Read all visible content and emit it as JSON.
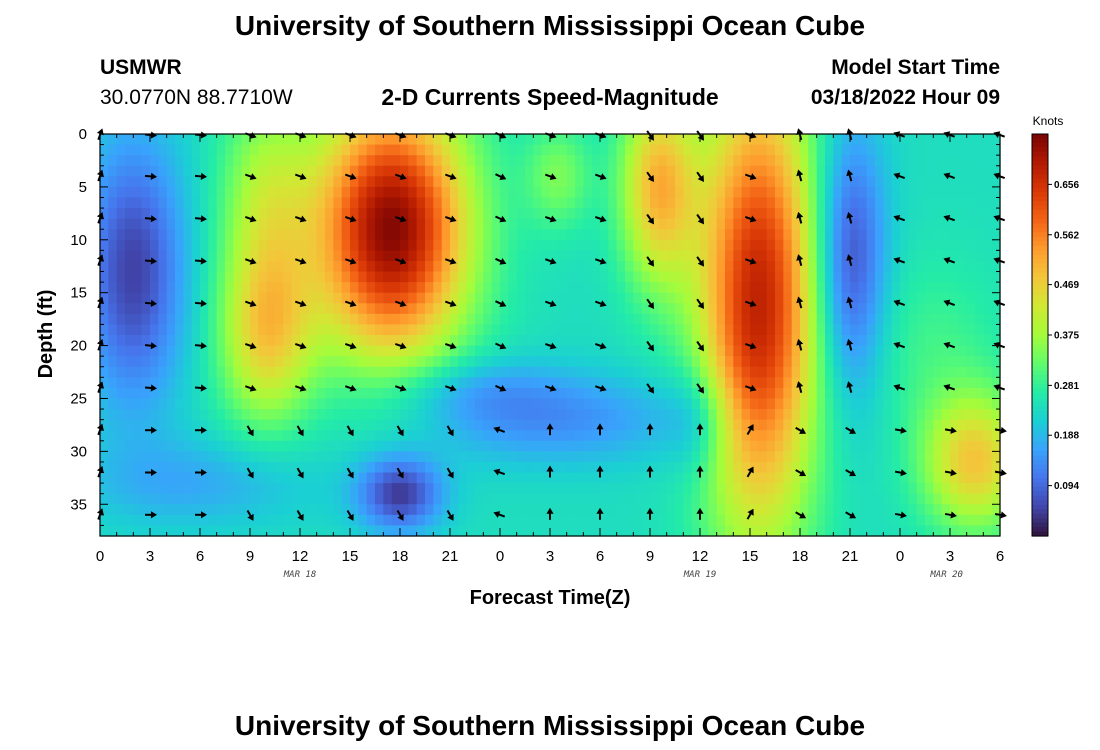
{
  "header": {
    "title": "University of Southern Mississippi Ocean Cube",
    "station": "USMWR",
    "coords": "30.0770N  88.7710W",
    "plot_title": "2-D Currents Speed-Magnitude",
    "model_label": "Model Start Time",
    "model_time": "03/18/2022 Hour 09",
    "footer_title": "University of Southern Mississippi Ocean Cube"
  },
  "chart_data": {
    "type": "heatmap",
    "title": "2-D Currents Speed-Magnitude",
    "xlabel": "Forecast Time(Z)",
    "ylabel": "Depth (ft)",
    "x_tick_labels": [
      "0",
      "3",
      "6",
      "9",
      "12",
      "15",
      "18",
      "21",
      "0",
      "3",
      "6",
      "9",
      "12",
      "15",
      "18",
      "21",
      "0",
      "3",
      "6"
    ],
    "x_range_hours": [
      0,
      54
    ],
    "date_labels": [
      {
        "label": "MAR 18",
        "hour": 12
      },
      {
        "label": "MAR 19",
        "hour": 36
      },
      {
        "label": "MAR 20",
        "hour": 50.8
      }
    ],
    "y_tick_labels": [
      "0",
      "5",
      "10",
      "15",
      "20",
      "25",
      "30",
      "35"
    ],
    "y_range_ft": [
      0,
      38
    ],
    "colorbar": {
      "title": "Knots",
      "ticks": [
        "0.656",
        "0.562",
        "0.469",
        "0.375",
        "0.281",
        "0.188",
        "0.094"
      ],
      "range": [
        0.0,
        0.75
      ],
      "colors": [
        "#30123b",
        "#4145ab",
        "#4675ed",
        "#39a2fc",
        "#1bcfd4",
        "#24eca6",
        "#61fc6c",
        "#a4fc3b",
        "#d1e834",
        "#f3c63a",
        "#fe9b2d",
        "#f36315",
        "#d93806",
        "#b11901",
        "#7a0403"
      ]
    },
    "key_points": [
      {
        "hour": 2,
        "depth": 12,
        "speed": 0.06
      },
      {
        "hour": 10,
        "depth": 20,
        "speed": 0.46
      },
      {
        "hour": 17,
        "depth": 10,
        "speed": 0.74
      },
      {
        "hour": 17.5,
        "depth": 35,
        "speed": 0.05
      },
      {
        "hour": 33.5,
        "depth": 5,
        "speed": 0.47
      },
      {
        "hour": 39,
        "depth": 15,
        "speed": 0.7
      },
      {
        "hour": 45,
        "depth": 12,
        "speed": 0.06
      },
      {
        "hour": 52,
        "depth": 32,
        "speed": 0.47
      }
    ]
  }
}
